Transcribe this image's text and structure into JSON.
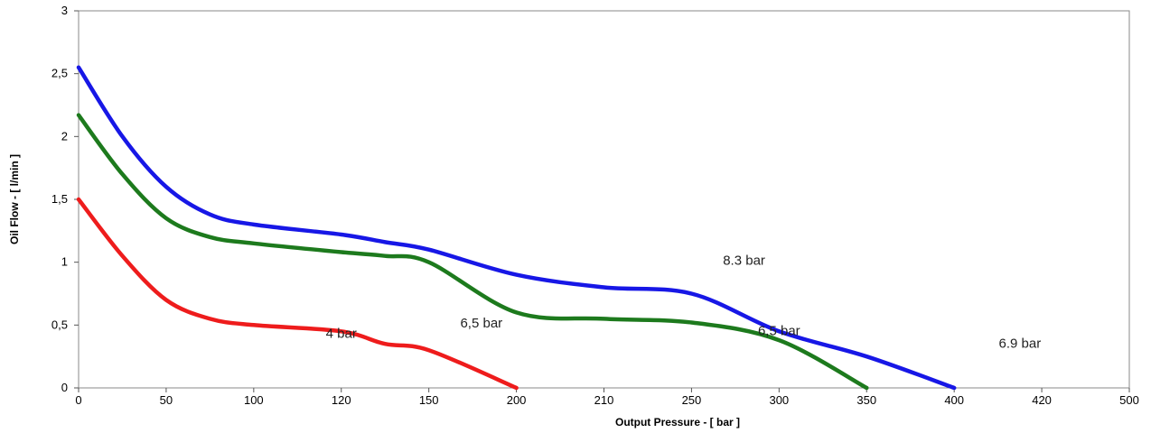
{
  "chart_data": {
    "type": "line",
    "title": "",
    "xlabel": "Output Pressure - [ bar ]",
    "ylabel": "Oil Flow - [ l/min ]",
    "x_ticks": [
      "0",
      "50",
      "100",
      "120",
      "150",
      "200",
      "210",
      "250",
      "300",
      "350",
      "400",
      "420",
      "500"
    ],
    "y_ticks": [
      "0",
      "0,5",
      "1",
      "1,5",
      "2",
      "2,5",
      "3"
    ],
    "ylim": [
      0,
      3
    ],
    "grid": false,
    "series": [
      {
        "name": "4 bar",
        "color": "#ee1c1c",
        "points": [
          {
            "x": 0,
            "y": 1.5
          },
          {
            "x": 25,
            "y": 1.05
          },
          {
            "x": 50,
            "y": 0.7
          },
          {
            "x": 75,
            "y": 0.55
          },
          {
            "x": 100,
            "y": 0.5
          },
          {
            "x": 120,
            "y": 0.45
          },
          {
            "x": 135,
            "y": 0.35
          },
          {
            "x": 150,
            "y": 0.3
          },
          {
            "x": 200,
            "y": 0
          }
        ]
      },
      {
        "name": "6,5 bar",
        "color": "#1d7a1d",
        "points": [
          {
            "x": 0,
            "y": 2.17
          },
          {
            "x": 25,
            "y": 1.7
          },
          {
            "x": 50,
            "y": 1.35
          },
          {
            "x": 75,
            "y": 1.2
          },
          {
            "x": 100,
            "y": 1.15
          },
          {
            "x": 120,
            "y": 1.08
          },
          {
            "x": 135,
            "y": 1.05
          },
          {
            "x": 150,
            "y": 1.0
          },
          {
            "x": 200,
            "y": 0.6
          },
          {
            "x": 210,
            "y": 0.55
          },
          {
            "x": 250,
            "y": 0.52
          },
          {
            "x": 300,
            "y": 0.38
          },
          {
            "x": 350,
            "y": 0
          }
        ]
      },
      {
        "name": "8.3 bar",
        "color": "#1717e6",
        "points": [
          {
            "x": 0,
            "y": 2.55
          },
          {
            "x": 25,
            "y": 2.0
          },
          {
            "x": 50,
            "y": 1.6
          },
          {
            "x": 75,
            "y": 1.38
          },
          {
            "x": 100,
            "y": 1.3
          },
          {
            "x": 120,
            "y": 1.22
          },
          {
            "x": 135,
            "y": 1.16
          },
          {
            "x": 150,
            "y": 1.1
          },
          {
            "x": 200,
            "y": 0.9
          },
          {
            "x": 210,
            "y": 0.8
          },
          {
            "x": 250,
            "y": 0.75
          },
          {
            "x": 300,
            "y": 0.45
          },
          {
            "x": 350,
            "y": 0.25
          },
          {
            "x": 400,
            "y": 0
          }
        ]
      }
    ],
    "annotations": [
      {
        "text": "4 bar",
        "x": 120,
        "y": 0.4
      },
      {
        "text": "6,5 bar",
        "x": 180,
        "y": 0.48
      },
      {
        "text": "8.3 bar",
        "x": 280,
        "y": 0.98
      },
      {
        "text": "6,5 bar",
        "x": 300,
        "y": 0.42
      },
      {
        "text": "6.9 bar",
        "x": 415,
        "y": 0.32
      }
    ]
  }
}
